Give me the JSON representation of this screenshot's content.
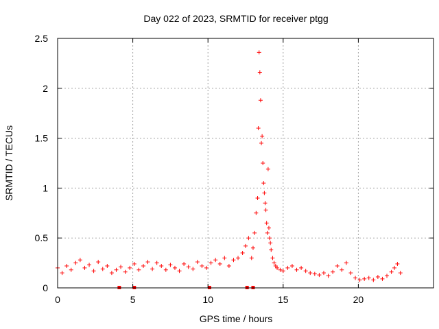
{
  "chart_data": {
    "type": "scatter",
    "title": "Day 022 of 2023, SRMTID for receiver ptgg",
    "xlabel": "GPS time / hours",
    "ylabel": "SRMTID / TECUs",
    "xlim": [
      0,
      25
    ],
    "ylim": [
      0,
      2.5
    ],
    "xticks": [
      0,
      5,
      10,
      15,
      20
    ],
    "xtick_labels": [
      "0",
      "5",
      "10",
      "15",
      "20"
    ],
    "yticks": [
      0,
      0.5,
      1,
      1.5,
      2,
      2.5
    ],
    "ytick_labels": [
      "0",
      "0.5",
      "1",
      "1.5",
      "2",
      "2.5"
    ],
    "grid": true,
    "marker": "+",
    "color": "#ff0000",
    "series": [
      {
        "name": "SRMTID",
        "x": [
          0.0,
          0.3,
          0.6,
          0.9,
          1.2,
          1.5,
          1.8,
          2.1,
          2.4,
          2.7,
          3.0,
          3.3,
          3.6,
          3.9,
          4.2,
          4.5,
          4.8,
          5.1,
          5.4,
          5.7,
          6.0,
          6.3,
          6.6,
          6.9,
          7.2,
          7.5,
          7.8,
          8.1,
          8.4,
          8.7,
          9.0,
          9.3,
          9.6,
          9.9,
          10.2,
          10.5,
          10.8,
          11.1,
          11.4,
          11.7,
          12.0,
          12.3,
          12.5,
          12.7,
          12.9,
          13.0,
          13.1,
          13.2,
          13.3,
          13.35,
          13.4,
          13.45,
          13.5,
          13.55,
          13.6,
          13.65,
          13.7,
          13.75,
          13.8,
          13.85,
          13.9,
          13.95,
          14.0,
          14.05,
          14.1,
          14.15,
          14.2,
          14.3,
          14.4,
          14.5,
          14.6,
          14.8,
          15.0,
          15.3,
          15.6,
          15.9,
          16.2,
          16.5,
          16.8,
          17.1,
          17.4,
          17.7,
          18.0,
          18.3,
          18.6,
          18.9,
          19.2,
          19.5,
          19.8,
          20.1,
          20.4,
          20.7,
          21.0,
          21.3,
          21.6,
          21.9,
          22.2,
          22.4,
          22.6,
          22.8
        ],
        "y": [
          0.2,
          0.15,
          0.22,
          0.18,
          0.25,
          0.28,
          0.2,
          0.23,
          0.17,
          0.26,
          0.19,
          0.22,
          0.15,
          0.18,
          0.21,
          0.16,
          0.2,
          0.24,
          0.18,
          0.22,
          0.26,
          0.19,
          0.25,
          0.22,
          0.18,
          0.23,
          0.2,
          0.17,
          0.24,
          0.21,
          0.19,
          0.26,
          0.22,
          0.2,
          0.25,
          0.28,
          0.24,
          0.3,
          0.22,
          0.28,
          0.3,
          0.35,
          0.42,
          0.5,
          0.3,
          0.4,
          0.55,
          0.75,
          0.9,
          1.6,
          2.36,
          2.16,
          1.88,
          1.45,
          1.52,
          1.25,
          1.05,
          0.95,
          0.85,
          0.78,
          0.65,
          0.55,
          1.19,
          0.6,
          0.5,
          0.45,
          0.38,
          0.3,
          0.25,
          0.22,
          0.2,
          0.18,
          0.17,
          0.2,
          0.22,
          0.18,
          0.2,
          0.17,
          0.15,
          0.14,
          0.13,
          0.15,
          0.12,
          0.16,
          0.22,
          0.18,
          0.25,
          0.15,
          0.1,
          0.08,
          0.09,
          0.1,
          0.08,
          0.11,
          0.09,
          0.12,
          0.16,
          0.2,
          0.24,
          0.15
        ]
      }
    ],
    "gaps": [
      4.1,
      5.1,
      10.1,
      12.6,
      13.0
    ]
  }
}
